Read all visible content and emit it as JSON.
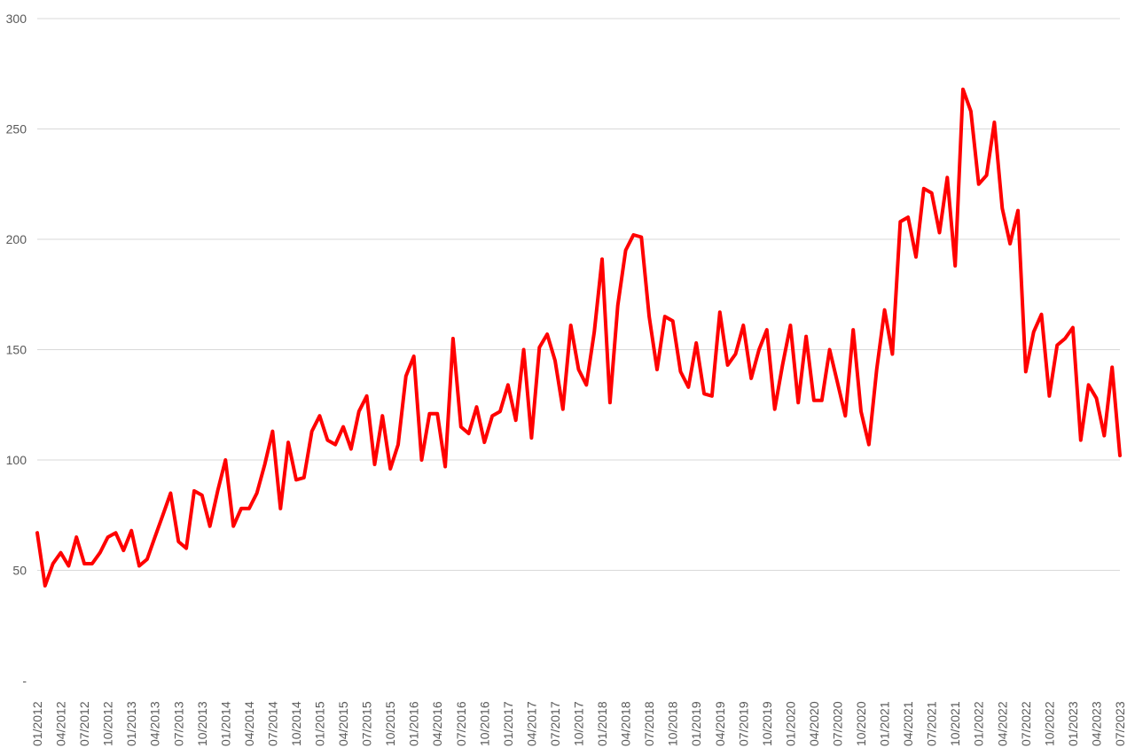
{
  "chart_data": {
    "type": "line",
    "title": "",
    "xlabel": "",
    "ylabel": "",
    "ylim": [
      0,
      300
    ],
    "y_ticks": [
      {
        "value": 0,
        "label": "-"
      },
      {
        "value": 50,
        "label": "50"
      },
      {
        "value": 100,
        "label": "100"
      },
      {
        "value": 150,
        "label": "150"
      },
      {
        "value": 200,
        "label": "200"
      },
      {
        "value": 250,
        "label": "250"
      },
      {
        "value": 300,
        "label": "300"
      }
    ],
    "x_tick_labels": [
      "01/2012",
      "04/2012",
      "07/2012",
      "10/2012",
      "01/2013",
      "04/2013",
      "07/2013",
      "10/2013",
      "01/2014",
      "04/2014",
      "07/2014",
      "10/2014",
      "01/2015",
      "04/2015",
      "07/2015",
      "10/2015",
      "01/2016",
      "04/2016",
      "07/2016",
      "10/2016",
      "01/2017",
      "04/2017",
      "07/2017",
      "10/2017",
      "01/2018",
      "04/2018",
      "07/2018",
      "10/2018",
      "01/2019",
      "04/2019",
      "07/2019",
      "10/2019",
      "01/2020",
      "04/2020",
      "07/2020",
      "10/2020",
      "01/2021",
      "04/2021",
      "07/2021",
      "10/2021",
      "01/2022",
      "04/2022",
      "07/2022",
      "10/2022",
      "01/2023",
      "04/2023",
      "07/2023"
    ],
    "x_tick_every_months": 3,
    "grid": true,
    "legend": "none",
    "series": [
      {
        "color": "#ff0000",
        "start": "01/2012",
        "values": [
          67,
          43,
          53,
          58,
          52,
          65,
          53,
          53,
          58,
          65,
          67,
          59,
          68,
          52,
          55,
          65,
          75,
          85,
          63,
          60,
          86,
          84,
          70,
          86,
          100,
          70,
          78,
          78,
          85,
          98,
          113,
          78,
          108,
          91,
          92,
          113,
          120,
          109,
          107,
          115,
          105,
          122,
          129,
          98,
          120,
          96,
          107,
          138,
          147,
          100,
          121,
          121,
          97,
          155,
          115,
          112,
          124,
          108,
          120,
          122,
          134,
          118,
          150,
          110,
          151,
          157,
          145,
          123,
          161,
          141,
          134,
          158,
          191,
          126,
          170,
          195,
          202,
          201,
          165,
          141,
          165,
          163,
          140,
          133,
          153,
          130,
          129,
          167,
          143,
          148,
          161,
          137,
          150,
          159,
          123,
          143,
          161,
          126,
          156,
          127,
          127,
          150,
          135,
          120,
          159,
          122,
          107,
          141,
          168,
          148,
          208,
          210,
          192,
          223,
          221,
          203,
          228,
          188,
          268,
          258,
          225,
          229,
          253,
          214,
          198,
          213,
          140,
          158,
          166,
          129,
          152,
          155,
          160,
          109,
          134,
          128,
          111,
          142,
          102
        ]
      }
    ]
  }
}
